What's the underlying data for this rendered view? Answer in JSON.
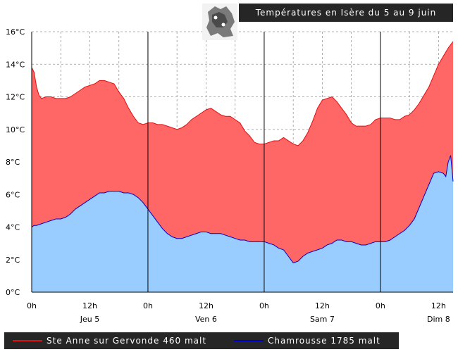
{
  "header": {
    "title": "Températures en Isère du 5 au 9 juin"
  },
  "colors": {
    "fill_high": "#ff6666",
    "line_high": "#e01010",
    "fill_low": "#99ccff",
    "line_low": "#0000cc"
  },
  "chart_data": {
    "type": "area",
    "title": "Températures en Isère du 5 au 9 juin",
    "xlabel": "",
    "ylabel": "",
    "x_unit": "hours from Jeu 5 0h",
    "xlim": [
      0,
      87
    ],
    "ylim": [
      0,
      16
    ],
    "yticks": [
      0,
      2,
      4,
      6,
      8,
      10,
      12,
      14,
      16
    ],
    "ytick_labels": [
      "0°C",
      "2°C",
      "4°C",
      "6°C",
      "8°C",
      "10°C",
      "12°C",
      "14°C",
      "16°C"
    ],
    "xticks": [
      0,
      12,
      24,
      36,
      48,
      60,
      72,
      84
    ],
    "xtick_labels": [
      "0h",
      "12h",
      "0h",
      "12h",
      "0h",
      "12h",
      "0h",
      "12h"
    ],
    "day_labels": [
      {
        "label": "Jeu 5",
        "x": 12
      },
      {
        "label": "Ven 6",
        "x": 36
      },
      {
        "label": "Sam 7",
        "x": 60
      },
      {
        "label": "Dim 8",
        "x": 84
      }
    ],
    "day_separators": [
      24,
      48,
      72
    ],
    "grid": true,
    "legend_position": "bottom",
    "series": [
      {
        "name": "Ste Anne sur Gervonde 460 malt",
        "color": "#ff6666",
        "x": [
          0,
          0.5,
          1,
          1.5,
          2,
          3,
          4,
          5,
          6,
          7,
          8,
          9,
          10,
          11,
          12,
          13,
          14,
          15,
          16,
          17,
          18,
          19,
          20,
          21,
          22,
          23,
          24,
          25,
          26,
          27,
          28,
          29,
          30,
          31,
          32,
          33,
          34,
          35,
          36,
          37,
          38,
          39,
          40,
          41,
          42,
          43,
          44,
          45,
          46,
          47,
          48,
          49,
          50,
          51,
          52,
          53,
          54,
          55,
          56,
          57,
          58,
          59,
          60,
          61,
          62,
          63,
          64,
          65,
          66,
          67,
          68,
          69,
          70,
          71,
          72,
          73,
          74,
          75,
          76,
          77,
          78,
          79,
          80,
          81,
          82,
          83,
          84,
          85,
          86,
          87
        ],
        "values": [
          13.8,
          13.5,
          12.6,
          12.1,
          11.9,
          12.0,
          12.0,
          11.9,
          11.9,
          11.9,
          12.0,
          12.2,
          12.4,
          12.6,
          12.7,
          12.8,
          13.0,
          13.0,
          12.9,
          12.8,
          12.3,
          11.9,
          11.3,
          10.8,
          10.4,
          10.3,
          10.4,
          10.4,
          10.3,
          10.3,
          10.2,
          10.1,
          10.0,
          10.1,
          10.3,
          10.6,
          10.8,
          11.0,
          11.2,
          11.3,
          11.1,
          10.9,
          10.8,
          10.8,
          10.6,
          10.4,
          9.9,
          9.6,
          9.2,
          9.1,
          9.1,
          9.2,
          9.3,
          9.3,
          9.5,
          9.3,
          9.1,
          9.0,
          9.3,
          9.8,
          10.5,
          11.3,
          11.8,
          11.9,
          12.0,
          11.7,
          11.3,
          10.9,
          10.4,
          10.2,
          10.2,
          10.2,
          10.3,
          10.6,
          10.7,
          10.7,
          10.7,
          10.6,
          10.6,
          10.8,
          10.9,
          11.2,
          11.6,
          12.1,
          12.6,
          13.3,
          14.0,
          14.5,
          15.0,
          15.4
        ]
      },
      {
        "name": "Chamrousse 1785 malt",
        "color": "#0000cc",
        "x": [
          0,
          0.5,
          1,
          2,
          3,
          4,
          5,
          6,
          7,
          8,
          9,
          10,
          11,
          12,
          13,
          14,
          15,
          16,
          17,
          18,
          19,
          20,
          21,
          22,
          23,
          24,
          25,
          26,
          27,
          28,
          29,
          30,
          31,
          32,
          33,
          34,
          35,
          36,
          37,
          38,
          39,
          40,
          41,
          42,
          43,
          44,
          45,
          46,
          47,
          48,
          49,
          50,
          51,
          52,
          53,
          54,
          55,
          56,
          57,
          58,
          59,
          60,
          61,
          62,
          63,
          64,
          65,
          66,
          67,
          68,
          69,
          70,
          71,
          72,
          73,
          74,
          75,
          76,
          77,
          78,
          79,
          80,
          81,
          82,
          83,
          84,
          85,
          85.5,
          86,
          86.5,
          87
        ],
        "values": [
          4.0,
          4.1,
          4.1,
          4.2,
          4.3,
          4.4,
          4.5,
          4.5,
          4.6,
          4.8,
          5.1,
          5.3,
          5.5,
          5.7,
          5.9,
          6.1,
          6.1,
          6.2,
          6.2,
          6.2,
          6.1,
          6.1,
          6.0,
          5.8,
          5.5,
          5.1,
          4.7,
          4.3,
          3.9,
          3.6,
          3.4,
          3.3,
          3.3,
          3.4,
          3.5,
          3.6,
          3.7,
          3.7,
          3.6,
          3.6,
          3.6,
          3.5,
          3.4,
          3.3,
          3.2,
          3.2,
          3.1,
          3.1,
          3.1,
          3.1,
          3.0,
          2.9,
          2.7,
          2.6,
          2.2,
          1.8,
          1.9,
          2.2,
          2.4,
          2.5,
          2.6,
          2.7,
          2.9,
          3.0,
          3.2,
          3.2,
          3.1,
          3.1,
          3.0,
          2.9,
          2.9,
          3.0,
          3.1,
          3.1,
          3.1,
          3.2,
          3.4,
          3.6,
          3.8,
          4.1,
          4.5,
          5.2,
          5.9,
          6.6,
          7.3,
          7.4,
          7.3,
          7.1,
          8.0,
          8.4,
          6.8
        ]
      }
    ]
  }
}
